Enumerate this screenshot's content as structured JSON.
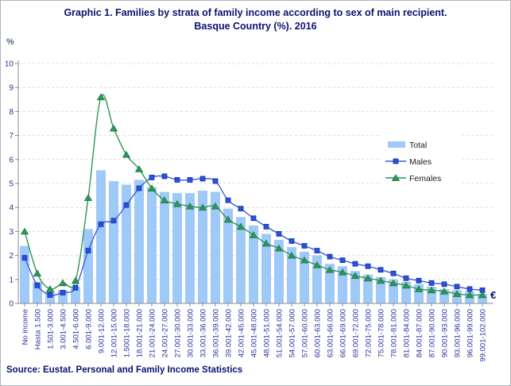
{
  "window": {
    "background": "#FFFFFF",
    "border_color": "#AEB6B9"
  },
  "header": {
    "title_line1": "Graphic 1. Families by strata of family income according to sex of main recipient.",
    "title_line2": "Basque Country (%). 2016",
    "title_color": "#0A1272"
  },
  "source": {
    "text": "Source: Eustat. Personal and Family Income Statistics"
  },
  "chart_data": {
    "type": "bar",
    "title": "Graphic 1. Families by strata of family income according to sex of main recipient. Basque Country (%). 2016",
    "y_unit_label": "%",
    "x_unit_label": "€",
    "ylim": [
      0,
      10
    ],
    "y_tick_step": 1,
    "grid": "horizontal-dashed",
    "grid_color": "#DCDCDC",
    "axis_color": "#8C8C8C",
    "tick_label_color": "#2832A0",
    "legend_position": "inside-right",
    "legend_text_color": "#1A1A1A",
    "categories": [
      "No income",
      "Hasta 1.500",
      "1.501-3.000",
      "3.001-4.500",
      "4.501-6.000",
      "6.001-9.000",
      "9.001-12.000",
      "12.001-15.000",
      "1.5001-18.000",
      "18.001-21.000",
      "21.001-24.000",
      "24.001-27.000",
      "27.001-30.000",
      "30.001-33.000",
      "33.001-36.000",
      "36.001-39.000",
      "39.001-42.000",
      "42.001-45.000",
      "45.001-48.000",
      "48.001-51.000",
      "51.001-54.000",
      "54.001-57.000",
      "57.001-60.000",
      "60.001-63.000",
      "63.001-66.000",
      "66.001-69.000",
      "69.001-72.000",
      "72.001-75.000",
      "75.001-78.000",
      "78.001-81.000",
      "81.001-84.000",
      "84.001-87.000",
      "87.001-90.000",
      "90.001-93.000",
      "93.001-96.000",
      "96.001-99.000",
      "99.001-102.000"
    ],
    "series": [
      {
        "name": "Total",
        "type": "bar",
        "color": "#9FC9F9",
        "values": [
          2.4,
          0.9,
          0.5,
          0.55,
          0.7,
          3.1,
          5.55,
          5.1,
          4.95,
          5.15,
          4.85,
          4.65,
          4.6,
          4.6,
          4.7,
          4.65,
          3.95,
          3.6,
          3.25,
          2.9,
          2.65,
          2.35,
          2.15,
          2.0,
          1.65,
          1.55,
          1.35,
          1.2,
          1.1,
          1.0,
          0.9,
          0.8,
          0.7,
          0.6,
          0.55,
          0.5,
          0.4
        ]
      },
      {
        "name": "Males",
        "type": "line",
        "color": "#3D5FDE",
        "marker": "square",
        "marker_fill": "#2B50DE",
        "marker_edge": "#1431A3",
        "values": [
          1.9,
          0.75,
          0.35,
          0.45,
          0.65,
          2.2,
          3.3,
          3.45,
          4.1,
          4.8,
          5.25,
          5.3,
          5.15,
          5.15,
          5.2,
          5.1,
          4.3,
          3.95,
          3.55,
          3.2,
          2.9,
          2.6,
          2.4,
          2.2,
          1.95,
          1.8,
          1.65,
          1.55,
          1.4,
          1.25,
          1.05,
          0.95,
          0.85,
          0.8,
          0.7,
          0.6,
          0.55
        ]
      },
      {
        "name": "Females",
        "type": "line",
        "color": "#2E9659",
        "marker": "triangle",
        "marker_fill": "#2E9659",
        "marker_edge": "#1F7A44",
        "values": [
          3.0,
          1.25,
          0.6,
          0.85,
          0.95,
          4.4,
          8.6,
          7.3,
          6.2,
          5.6,
          4.8,
          4.3,
          4.15,
          4.05,
          4.0,
          4.05,
          3.5,
          3.2,
          2.85,
          2.5,
          2.3,
          2.0,
          1.8,
          1.6,
          1.4,
          1.3,
          1.15,
          1.05,
          0.95,
          0.85,
          0.75,
          0.6,
          0.55,
          0.5,
          0.4,
          0.35,
          0.35
        ]
      }
    ]
  }
}
